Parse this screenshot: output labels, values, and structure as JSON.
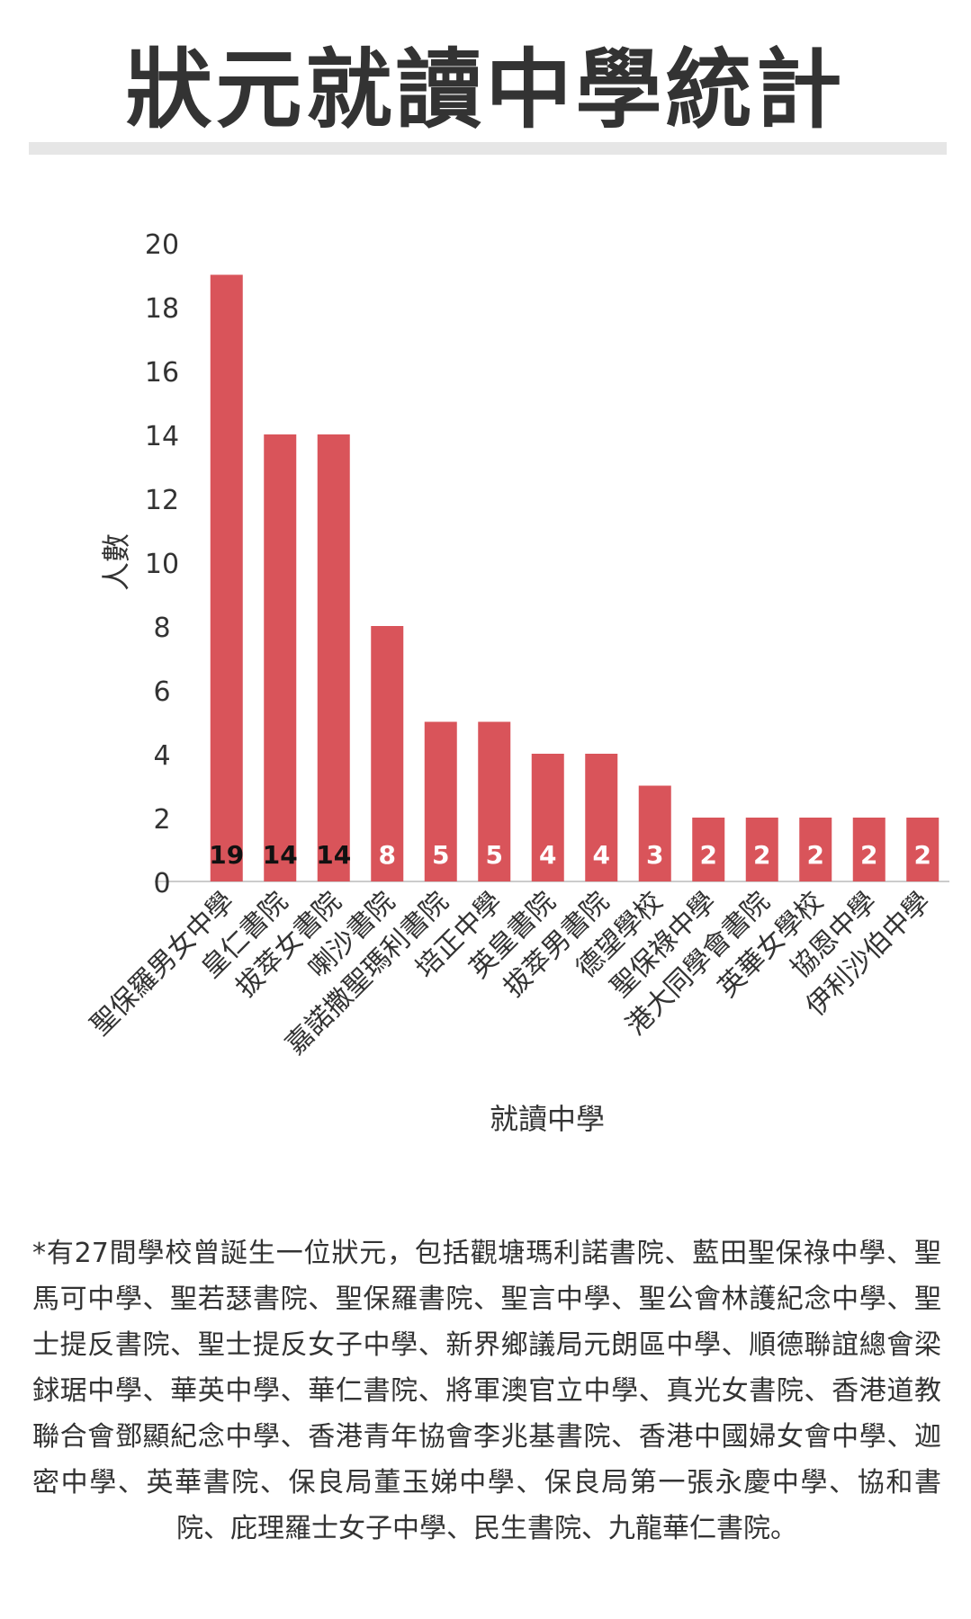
{
  "title": "狀元就讀中學統計",
  "chart_data": {
    "type": "bar",
    "categories": [
      "聖保羅男女中學",
      "皇仁書院",
      "拔萃女書院",
      "喇沙書院",
      "嘉諾撒聖瑪利書院",
      "培正中學",
      "英皇書院",
      "拔萃男書院",
      "德望學校",
      "聖保祿中學",
      "港大同學會書院",
      "英華女學校",
      "協恩中學",
      "伊利沙伯中學"
    ],
    "values": [
      19,
      14,
      14,
      8,
      5,
      5,
      4,
      4,
      3,
      2,
      2,
      2,
      2,
      2
    ],
    "data_labels": [
      "19",
      "14",
      "14",
      "8",
      "5",
      "5",
      "4",
      "4",
      "3",
      "2",
      "2",
      "2",
      "2",
      "2"
    ],
    "xlabel": "就讀中學",
    "ylabel": "人數",
    "ylim": [
      0,
      20
    ],
    "yticks": [
      "0",
      "2",
      "4",
      "6",
      "8",
      "10",
      "12",
      "14",
      "16",
      "18",
      "20"
    ],
    "bar_color": "#d9545a",
    "grid": false
  },
  "footnote": "*有27間學校曾誕生一位狀元，包括觀塘瑪利諾書院、藍田聖保祿中學、聖馬可中學、聖若瑟書院、聖保羅書院、聖言中學、聖公會林護紀念中學、聖士提反書院、聖士提反女子中學、新界鄉議局元朗區中學、順德聯誼總會梁銶琚中學、華英中學、華仁書院、將軍澳官立中學、真光女書院、香港道教聯合會鄧顯紀念中學、香港青年協會李兆基書院、香港中國婦女會中學、迦密中學、英華書院、保良局董玉娣中學、保良局第一張永慶中學、協和書院、庇理羅士女子中學、民生書院、九龍華仁書院。"
}
